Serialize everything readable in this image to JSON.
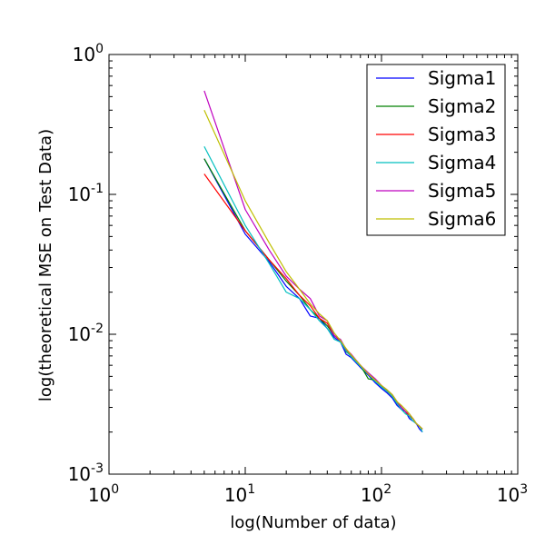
{
  "chart_data": {
    "type": "line",
    "xlabel": "log(Number of data)",
    "ylabel": "log(theoretical MSE on Test Data)",
    "xscale": "log",
    "yscale": "log",
    "xlim": [
      1,
      1000
    ],
    "ylim": [
      0.001,
      1
    ],
    "x_ticks": [
      {
        "base": "10",
        "exp": "0",
        "value": 1
      },
      {
        "base": "10",
        "exp": "1",
        "value": 10
      },
      {
        "base": "10",
        "exp": "2",
        "value": 100
      },
      {
        "base": "10",
        "exp": "3",
        "value": 1000
      }
    ],
    "y_ticks": [
      {
        "base": "10",
        "exp": "0",
        "value": 1
      },
      {
        "base": "10",
        "exp": "-1",
        "value": 0.1
      },
      {
        "base": "10",
        "exp": "-2",
        "value": 0.01
      },
      {
        "base": "10",
        "exp": "-3",
        "value": 0.001
      }
    ],
    "legend_position": "top-right",
    "grid": false,
    "series": [
      {
        "name": "Sigma1",
        "color": "#0000ff",
        "x": [
          5,
          10,
          15,
          20,
          25,
          30,
          35,
          40,
          45,
          50,
          55,
          60,
          70,
          80,
          90,
          100,
          110,
          120,
          130,
          140,
          150,
          160,
          170,
          180,
          190,
          200
        ],
        "y": [
          0.18,
          0.052,
          0.033,
          0.022,
          0.018,
          0.0135,
          0.013,
          0.011,
          0.0095,
          0.0088,
          0.0072,
          0.0068,
          0.0058,
          0.0051,
          0.0045,
          0.0041,
          0.0038,
          0.0035,
          0.0031,
          0.0029,
          0.0028,
          0.0025,
          0.0024,
          0.0023,
          0.0021,
          0.002
        ]
      },
      {
        "name": "Sigma2",
        "color": "#008000",
        "x": [
          5,
          10,
          15,
          20,
          25,
          30,
          35,
          40,
          45,
          50,
          55,
          60,
          70,
          80,
          90,
          100,
          110,
          120,
          130,
          140,
          150,
          160,
          170,
          180,
          190,
          200
        ],
        "y": [
          0.18,
          0.055,
          0.034,
          0.024,
          0.019,
          0.015,
          0.013,
          0.0115,
          0.0098,
          0.009,
          0.0075,
          0.007,
          0.006,
          0.0048,
          0.0047,
          0.0042,
          0.0039,
          0.0036,
          0.0032,
          0.003,
          0.0028,
          0.0026,
          0.0025,
          0.0023,
          0.0022,
          0.0021
        ]
      },
      {
        "name": "Sigma3",
        "color": "#ff0000",
        "x": [
          5,
          10,
          15,
          20,
          25,
          30,
          35,
          40,
          45,
          50,
          55,
          60,
          70,
          80,
          90,
          100,
          110,
          120,
          130,
          140,
          150,
          160,
          170,
          180,
          190,
          200
        ],
        "y": [
          0.14,
          0.055,
          0.034,
          0.025,
          0.019,
          0.016,
          0.013,
          0.012,
          0.0098,
          0.009,
          0.0078,
          0.007,
          0.006,
          0.0052,
          0.0047,
          0.0043,
          0.0039,
          0.0036,
          0.0033,
          0.003,
          0.0028,
          0.0026,
          0.0025,
          0.0023,
          0.0022,
          0.0021
        ]
      },
      {
        "name": "Sigma4",
        "color": "#00bfbf",
        "x": [
          5,
          10,
          15,
          20,
          25,
          30,
          35,
          40,
          45,
          50,
          55,
          60,
          70,
          80,
          90,
          100,
          110,
          120,
          130,
          140,
          150,
          160,
          170,
          180,
          190,
          200
        ],
        "y": [
          0.22,
          0.06,
          0.032,
          0.02,
          0.018,
          0.015,
          0.0125,
          0.011,
          0.0092,
          0.0088,
          0.0076,
          0.0069,
          0.0059,
          0.0052,
          0.0046,
          0.0042,
          0.0039,
          0.0036,
          0.0032,
          0.0029,
          0.0027,
          0.0026,
          0.0024,
          0.0023,
          0.0022,
          0.002
        ]
      },
      {
        "name": "Sigma5",
        "color": "#bf00bf",
        "x": [
          5,
          10,
          15,
          20,
          25,
          30,
          35,
          40,
          45,
          50,
          55,
          60,
          70,
          80,
          90,
          100,
          110,
          120,
          130,
          140,
          150,
          160,
          170,
          180,
          190,
          200
        ],
        "y": [
          0.55,
          0.078,
          0.04,
          0.026,
          0.021,
          0.018,
          0.0135,
          0.0125,
          0.0098,
          0.0092,
          0.0078,
          0.0072,
          0.006,
          0.0053,
          0.0048,
          0.0043,
          0.004,
          0.0037,
          0.0033,
          0.003,
          0.0028,
          0.0027,
          0.0025,
          0.0023,
          0.0022,
          0.0021
        ]
      },
      {
        "name": "Sigma6",
        "color": "#bfbf00",
        "x": [
          5,
          10,
          15,
          20,
          25,
          30,
          35,
          40,
          45,
          50,
          55,
          60,
          70,
          80,
          90,
          100,
          110,
          120,
          130,
          140,
          150,
          160,
          170,
          180,
          190,
          200
        ],
        "y": [
          0.4,
          0.09,
          0.045,
          0.028,
          0.021,
          0.0165,
          0.014,
          0.0125,
          0.0102,
          0.009,
          0.0079,
          0.0071,
          0.006,
          0.0052,
          0.0047,
          0.0043,
          0.004,
          0.0037,
          0.0033,
          0.0031,
          0.0029,
          0.0027,
          0.0025,
          0.0023,
          0.0022,
          0.0021
        ]
      }
    ]
  }
}
